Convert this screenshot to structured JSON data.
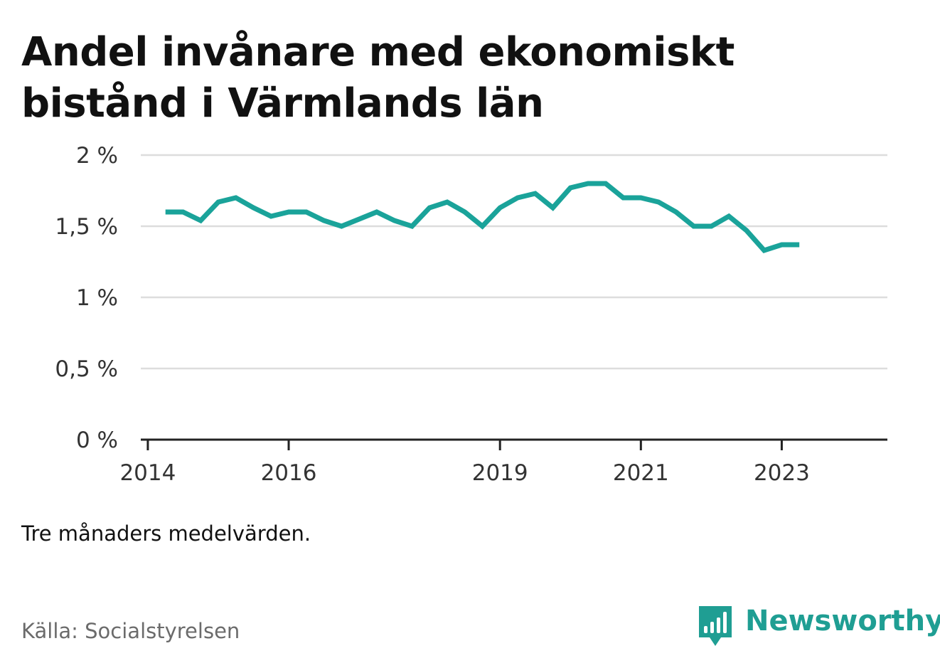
{
  "title": "Andel invånare med ekonomiskt bistånd i Värmlands län",
  "note": "Tre månaders medelvärden.",
  "source": "Källa: Socialstyrelsen",
  "brand": {
    "name": "Newsworthy",
    "icon": "newsworthy-chart-icon",
    "color": "#1f9e93"
  },
  "colors": {
    "line": "#1aa39a",
    "grid": "#dddddd",
    "axis": "#222222"
  },
  "chart_data": {
    "type": "line",
    "title": "Andel invånare med ekonomiskt bistånd i Värmlands län",
    "xlabel": "",
    "ylabel": "",
    "ylim": [
      0,
      2
    ],
    "y_ticks": [
      {
        "value": 0,
        "label": "0 %"
      },
      {
        "value": 0.5,
        "label": "0,5 %"
      },
      {
        "value": 1,
        "label": "1 %"
      },
      {
        "value": 1.5,
        "label": "1,5 %"
      },
      {
        "value": 2,
        "label": "2 %"
      }
    ],
    "x_ticks": [
      {
        "value": 2014,
        "label": "2014"
      },
      {
        "value": 2016,
        "label": "2016"
      },
      {
        "value": 2019,
        "label": "2019"
      },
      {
        "value": 2021,
        "label": "2021"
      },
      {
        "value": 2023,
        "label": "2023"
      }
    ],
    "xlim": [
      2013.9,
      2024.5
    ],
    "grid": true,
    "series": [
      {
        "x": [
          2014.25,
          2014.5,
          2014.75,
          2015.0,
          2015.25,
          2015.5,
          2015.75,
          2016.0,
          2016.25,
          2016.5,
          2016.75,
          2017.0,
          2017.25,
          2017.5,
          2017.75,
          2018.0,
          2018.25,
          2018.5,
          2018.75,
          2019.0,
          2019.25,
          2019.5,
          2019.75,
          2020.0,
          2020.25,
          2020.5,
          2020.75,
          2021.0,
          2021.25,
          2021.5,
          2021.75,
          2022.0,
          2022.25,
          2022.5,
          2022.75,
          2023.0,
          2023.25
        ],
        "values": [
          1.6,
          1.6,
          1.54,
          1.67,
          1.7,
          1.63,
          1.57,
          1.6,
          1.6,
          1.54,
          1.5,
          1.55,
          1.6,
          1.54,
          1.5,
          1.63,
          1.67,
          1.6,
          1.5,
          1.63,
          1.7,
          1.73,
          1.63,
          1.77,
          1.8,
          1.8,
          1.7,
          1.7,
          1.67,
          1.6,
          1.5,
          1.5,
          1.57,
          1.47,
          1.33,
          1.37,
          1.37
        ]
      }
    ]
  }
}
